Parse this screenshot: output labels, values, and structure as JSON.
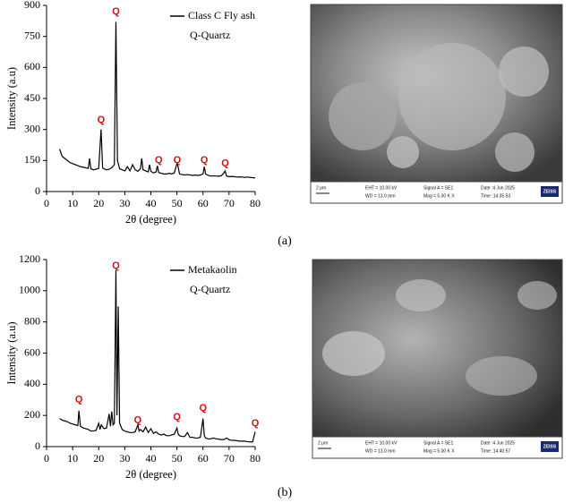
{
  "chart_data": [
    {
      "type": "line",
      "xlabel": "2θ (degree)",
      "ylabel": "Intensity (a.u)",
      "xlim": [
        0,
        80
      ],
      "xticks": [
        0,
        10,
        20,
        30,
        40,
        50,
        60,
        70,
        80
      ],
      "ylim": [
        0,
        900
      ],
      "yticks": [
        0,
        150,
        300,
        450,
        600,
        750,
        900
      ],
      "x": [
        5,
        6,
        7,
        8,
        9,
        10,
        11,
        12,
        13,
        14,
        15,
        16,
        16.5,
        17,
        18,
        19,
        20,
        20.9,
        21.5,
        22,
        23,
        24,
        25,
        26,
        26.6,
        27.2,
        28,
        29,
        30,
        31,
        32,
        33,
        34,
        35,
        36,
        36.5,
        37,
        38,
        39,
        39.5,
        40,
        41,
        42,
        42.5,
        43,
        44,
        45,
        46,
        47,
        48,
        49,
        50.1,
        51,
        52,
        53,
        54,
        55,
        56,
        57,
        58,
        59,
        60,
        60.5,
        61,
        62,
        63,
        64,
        65,
        66,
        67,
        68,
        68.5,
        69,
        70,
        71,
        72,
        73,
        74,
        75,
        76,
        77,
        78,
        79,
        80
      ],
      "series": [
        {
          "name": "Class C Fly ash",
          "color": "#000000",
          "values": [
            205,
            170,
            160,
            150,
            140,
            135,
            130,
            125,
            120,
            118,
            115,
            112,
            160,
            110,
            105,
            108,
            112,
            300,
            115,
            110,
            105,
            108,
            115,
            130,
            820,
            150,
            110,
            105,
            100,
            120,
            100,
            130,
            105,
            98,
            110,
            160,
            105,
            100,
            95,
            130,
            98,
            90,
            95,
            125,
            92,
            88,
            85,
            85,
            88,
            85,
            90,
            140,
            85,
            82,
            80,
            82,
            80,
            78,
            80,
            78,
            80,
            85,
            120,
            85,
            78,
            75,
            76,
            75,
            74,
            76,
            90,
            100,
            75,
            72,
            73,
            72,
            70,
            71,
            70,
            68,
            70,
            68,
            67,
            66
          ]
        }
      ],
      "note": "Q-Quartz",
      "annotations": [
        {
          "text": "Q",
          "x": 20.9,
          "y": 345
        },
        {
          "text": "Q",
          "x": 26.6,
          "y": 870
        },
        {
          "text": "Q",
          "x": 43,
          "y": 150
        },
        {
          "text": "Q",
          "x": 50.1,
          "y": 150
        },
        {
          "text": "Q",
          "x": 60.5,
          "y": 150
        },
        {
          "text": "Q",
          "x": 68.5,
          "y": 135
        }
      ]
    },
    {
      "type": "line",
      "xlabel": "2θ (degree)",
      "ylabel": "Intensity (a.u)",
      "xlim": [
        0,
        80
      ],
      "xticks": [
        0,
        10,
        20,
        30,
        40,
        50,
        60,
        70,
        80
      ],
      "ylim": [
        0,
        1200
      ],
      "yticks": [
        0,
        200,
        400,
        600,
        800,
        1000,
        1200
      ],
      "x": [
        5,
        6,
        7,
        8,
        9,
        10,
        11,
        12,
        12.4,
        13,
        14,
        15,
        16,
        17,
        18,
        19,
        20,
        20.5,
        21,
        22,
        23,
        24,
        24.5,
        25,
        25.5,
        26,
        26.6,
        27,
        27.5,
        28,
        29,
        30,
        31,
        32,
        33,
        34,
        35,
        35.5,
        36,
        37,
        38,
        39,
        40,
        41,
        42,
        43,
        44,
        45,
        46,
        47,
        48,
        49,
        50,
        50.5,
        51,
        52,
        53,
        54,
        55,
        56,
        57,
        58,
        59,
        60,
        60.5,
        61,
        62,
        63,
        64,
        65,
        66,
        67,
        68,
        69,
        70,
        71,
        72,
        73,
        74,
        75,
        76,
        77,
        78,
        79,
        80
      ],
      "series": [
        {
          "name": "Metakaolin",
          "color": "#000000",
          "values": [
            180,
            170,
            165,
            160,
            150,
            145,
            140,
            135,
            230,
            130,
            120,
            115,
            110,
            100,
            100,
            105,
            150,
            110,
            140,
            115,
            120,
            210,
            130,
            225,
            140,
            150,
            1130,
            200,
            900,
            150,
            110,
            100,
            95,
            90,
            90,
            95,
            140,
            100,
            110,
            95,
            125,
            90,
            115,
            85,
            95,
            80,
            75,
            80,
            70,
            70,
            75,
            80,
            120,
            80,
            70,
            65,
            65,
            90,
            60,
            60,
            55,
            55,
            60,
            180,
            70,
            55,
            50,
            50,
            55,
            50,
            48,
            45,
            45,
            55,
            45,
            40,
            40,
            38,
            35,
            35,
            35,
            32,
            30,
            30,
            95
          ]
        }
      ],
      "note": "Q-Quartz",
      "annotations": [
        {
          "text": "Q",
          "x": 12.4,
          "y": 300
        },
        {
          "text": "Q",
          "x": 26.6,
          "y": 1160
        },
        {
          "text": "Q",
          "x": 35,
          "y": 170
        },
        {
          "text": "Q",
          "x": 50,
          "y": 190
        },
        {
          "text": "Q",
          "x": 60,
          "y": 245
        },
        {
          "text": "Q",
          "x": 80,
          "y": 150
        }
      ]
    }
  ],
  "panels": [
    {
      "label": "(a)",
      "sem": {
        "scale": "2 μm",
        "eht": "EHT = 10.00 kV",
        "wd": "WD = 13.0 mm",
        "signal": "Signal A = SE1",
        "mag": "Mag =   5.00 K X",
        "date": "Date :4 Jun 2025",
        "time": "Time :14:35:53",
        "logo": "ZEISS"
      }
    },
    {
      "label": "(b)",
      "sem": {
        "scale": "2 μm",
        "eht": "EHT = 10.00 kV",
        "wd": "WD = 13.0 mm",
        "signal": "Signal A = SE1",
        "mag": "Mag =   5.00 K X",
        "date": "Date :4 Jun 2025",
        "time": "Time :14:40:57",
        "logo": "ZEISS"
      }
    }
  ]
}
